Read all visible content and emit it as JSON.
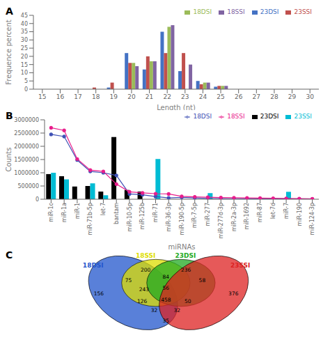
{
  "chart_data": [
    {
      "type": "bar",
      "title": "A",
      "categories": [
        15,
        16,
        17,
        18,
        19,
        20,
        21,
        22,
        23,
        24,
        25,
        26,
        27,
        28,
        29,
        30
      ],
      "series": [
        {
          "name": "23DSI",
          "color": "#4472c4",
          "values": [
            0,
            0,
            0,
            0,
            1,
            22,
            12,
            35,
            11,
            5,
            1.5,
            0,
            0,
            0,
            0,
            0
          ]
        },
        {
          "name": "23SSI",
          "color": "#c0504d",
          "values": [
            0,
            0,
            0,
            1,
            4,
            16,
            20,
            22,
            22,
            3,
            2,
            0,
            0,
            0,
            0,
            0
          ]
        },
        {
          "name": "18DSI",
          "color": "#9bbb59",
          "values": [
            0,
            0,
            0,
            0,
            0,
            16,
            17,
            38,
            0,
            4,
            2,
            0,
            0,
            0,
            0,
            0
          ]
        },
        {
          "name": "18SSI",
          "color": "#8064a2",
          "values": [
            0,
            0,
            0,
            0,
            0,
            14,
            17,
            39,
            15,
            4,
            2,
            0,
            0,
            0,
            0,
            0
          ]
        }
      ],
      "xlabel": "Length (nt)",
      "ylabel": "Frequence percent",
      "ylim": [
        0,
        45
      ],
      "yticks": [
        0,
        5,
        10,
        15,
        20,
        25,
        30,
        35,
        40,
        45
      ],
      "legend": "upper right",
      "grid": false
    },
    {
      "type": "bar",
      "title": "B",
      "categories": [
        "miR-1c",
        "miR-1a",
        "miR-1",
        "miR-71b-5p",
        "let-7",
        "bantam",
        "miR-10-5p",
        "miR-125b",
        "miR-71",
        "miR-36-3p",
        "miR-190-5p",
        "miR-7-5p",
        "miR-277",
        "miR-277d-3p",
        "miR-2a-3p",
        "miR-1692",
        "miR-87",
        "let-7d",
        "miR-7",
        "miR-190",
        "miR-124-3p"
      ],
      "series": [
        {
          "name": "23DSI",
          "type": "bar",
          "color": "#000000",
          "values": [
            950000,
            870000,
            480000,
            500000,
            290000,
            2350000,
            350000,
            290000,
            0,
            0,
            0,
            0,
            0,
            0,
            0,
            0,
            0,
            0,
            0,
            0,
            0
          ]
        },
        {
          "name": "23SSI",
          "type": "bar",
          "color": "#00bcd4",
          "values": [
            1000000,
            750000,
            0,
            600000,
            150000,
            0,
            0,
            0,
            1520000,
            0,
            0,
            0,
            230000,
            0,
            0,
            0,
            0,
            0,
            280000,
            0,
            0
          ]
        },
        {
          "name": "18DSI",
          "type": "line",
          "color": "#3f51b5",
          "marker": "circle",
          "values": [
            2450000,
            2370000,
            1480000,
            1050000,
            1000000,
            900000,
            200000,
            170000,
            100000,
            50000,
            70000,
            50000,
            30000,
            25000,
            20000,
            15000,
            10000,
            10000,
            10000,
            8000,
            8000
          ]
        },
        {
          "name": "18SSI",
          "type": "line",
          "color": "#e91e8c",
          "marker": "circle",
          "values": [
            2700000,
            2600000,
            1520000,
            1100000,
            1050000,
            570000,
            280000,
            240000,
            210000,
            200000,
            110000,
            90000,
            75000,
            65000,
            55000,
            50000,
            45000,
            35000,
            30000,
            25000,
            20000
          ]
        }
      ],
      "xlabel": "miRNAs",
      "ylabel": "Counts",
      "ylim": [
        0,
        3000000
      ],
      "yticks": [
        0,
        500000,
        1000000,
        1500000,
        2000000,
        2500000,
        3000000
      ],
      "legend": "upper right",
      "grid": false
    },
    {
      "type": "venn",
      "title": "C",
      "series": [
        {
          "name": "18DSI",
          "color": "#2255cc"
        },
        {
          "name": "18SSI",
          "color": "#dddd00"
        },
        {
          "name": "23DSI",
          "color": "#22aa22"
        },
        {
          "name": "23SSI",
          "color": "#dd2222"
        }
      ],
      "values": [
        200,
        236,
        75,
        84,
        58,
        156,
        243,
        56,
        376,
        126,
        458,
        50,
        32,
        32,
        35
      ]
    }
  ]
}
